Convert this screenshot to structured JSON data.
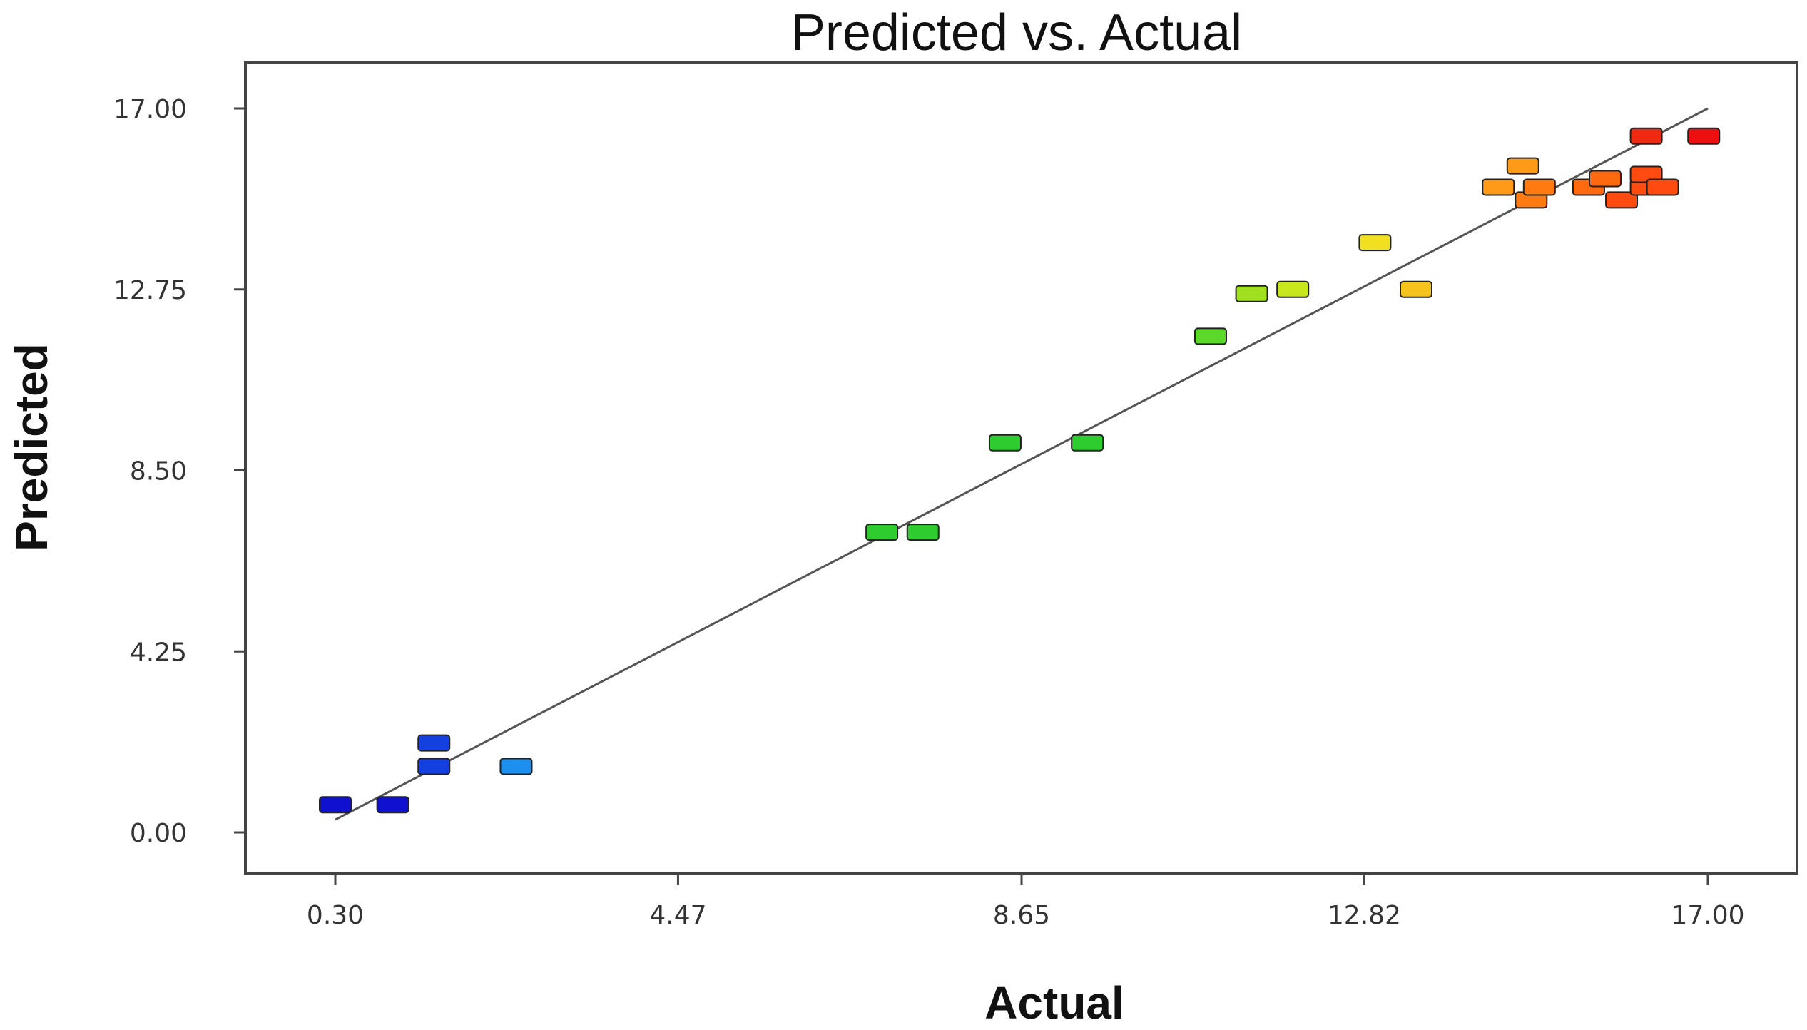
{
  "chart_data": {
    "type": "scatter",
    "title": "Predicted vs. Actual",
    "xlabel": "Actual",
    "ylabel": "Predicted",
    "x_ticks": [
      "0.30",
      "4.47",
      "8.65",
      "12.82",
      "17.00"
    ],
    "y_ticks": [
      "17.00",
      "12.75",
      "8.50",
      "4.25",
      "0.00"
    ],
    "xlim": [
      0.3,
      17.0
    ],
    "ylim": [
      0.0,
      17.0
    ],
    "fit_line": {
      "x": [
        0.3,
        17.0
      ],
      "y": [
        0.3,
        17.0
      ],
      "color": "#555555"
    },
    "points": [
      {
        "x": 0.3,
        "y": 0.65,
        "color": "#1010d0"
      },
      {
        "x": 1.0,
        "y": 0.65,
        "color": "#1010d0"
      },
      {
        "x": 1.5,
        "y": 2.1,
        "color": "#1540e0"
      },
      {
        "x": 1.5,
        "y": 1.55,
        "color": "#1540e0"
      },
      {
        "x": 2.5,
        "y": 1.55,
        "color": "#1d8fef"
      },
      {
        "x": 6.95,
        "y": 7.05,
        "color": "#2ecc2e"
      },
      {
        "x": 7.45,
        "y": 7.05,
        "color": "#2ecc2e"
      },
      {
        "x": 8.45,
        "y": 9.15,
        "color": "#2ecc2e"
      },
      {
        "x": 9.45,
        "y": 9.15,
        "color": "#2ecc2e"
      },
      {
        "x": 10.95,
        "y": 11.65,
        "color": "#5bd82a"
      },
      {
        "x": 11.45,
        "y": 12.65,
        "color": "#a0e020"
      },
      {
        "x": 11.95,
        "y": 12.75,
        "color": "#c8e81c"
      },
      {
        "x": 12.95,
        "y": 13.85,
        "color": "#f0e020"
      },
      {
        "x": 13.45,
        "y": 12.75,
        "color": "#f6c21c"
      },
      {
        "x": 14.45,
        "y": 15.15,
        "color": "#ff9a18"
      },
      {
        "x": 14.75,
        "y": 15.65,
        "color": "#ff9a18"
      },
      {
        "x": 14.85,
        "y": 14.85,
        "color": "#ff7a10"
      },
      {
        "x": 14.95,
        "y": 15.15,
        "color": "#ff7a10"
      },
      {
        "x": 15.55,
        "y": 15.15,
        "color": "#ff6a10"
      },
      {
        "x": 15.75,
        "y": 15.35,
        "color": "#ff6a10"
      },
      {
        "x": 15.95,
        "y": 14.85,
        "color": "#ff4a10"
      },
      {
        "x": 16.25,
        "y": 15.15,
        "color": "#ff4a10"
      },
      {
        "x": 16.25,
        "y": 15.45,
        "color": "#ff4a10"
      },
      {
        "x": 16.45,
        "y": 15.15,
        "color": "#ff4a10"
      },
      {
        "x": 16.25,
        "y": 16.35,
        "color": "#f02a10"
      },
      {
        "x": 16.95,
        "y": 16.35,
        "color": "#ee1010"
      }
    ]
  }
}
